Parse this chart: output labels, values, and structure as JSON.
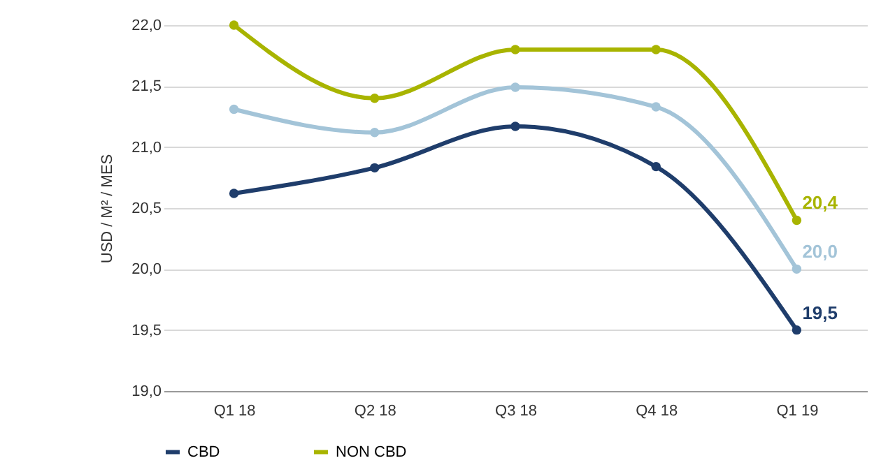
{
  "chart_data": {
    "type": "line",
    "ylabel": "USD / M² / MES",
    "categories": [
      "Q1 18",
      "Q2 18",
      "Q3 18",
      "Q4 18",
      "Q1 19"
    ],
    "series": [
      {
        "name": "CBD",
        "color": "#1f3d6b",
        "values": [
          20.62,
          20.83,
          21.17,
          20.84,
          19.5
        ],
        "value_labels": [
          null,
          null,
          null,
          null,
          "19,5"
        ]
      },
      {
        "color": "#a3c4d8",
        "values": [
          21.31,
          21.12,
          21.49,
          21.33,
          20.0
        ],
        "value_labels": [
          null,
          null,
          null,
          null,
          "20,0"
        ]
      },
      {
        "name": "NON CBD",
        "color": "#a8b400",
        "values": [
          22.0,
          21.4,
          21.8,
          21.8,
          20.4
        ],
        "value_labels": [
          null,
          null,
          null,
          null,
          "20,4"
        ]
      }
    ],
    "ylim": [
      19.0,
      22.0
    ],
    "yticks": [
      {
        "value": 19.0,
        "label": "19,0"
      },
      {
        "value": 19.5,
        "label": "19,5"
      },
      {
        "value": 20.0,
        "label": "20,0"
      },
      {
        "value": 20.5,
        "label": "20,5"
      },
      {
        "value": 21.0,
        "label": "21,0"
      },
      {
        "value": 21.5,
        "label": "21,5"
      },
      {
        "value": 22.0,
        "label": "22,0"
      }
    ],
    "grid": "y",
    "legend": "bottom",
    "marker": "circle",
    "line_style": "solid"
  }
}
